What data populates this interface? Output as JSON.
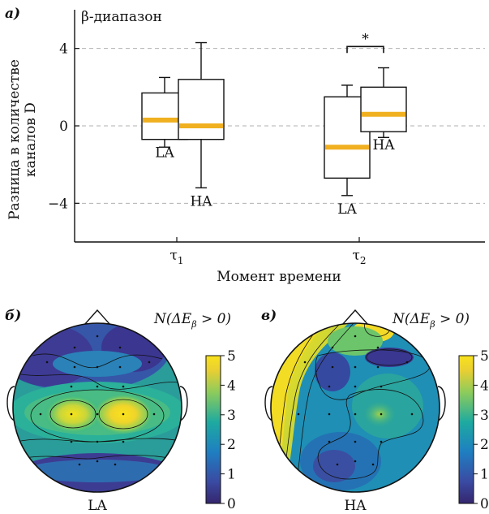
{
  "figure": {
    "panel_a": {
      "letter": "а)",
      "title": "β-диапазон",
      "ylabel_line1": "Разница в количестве",
      "ylabel_line2": "каналов D",
      "xlabel": "Момент времени",
      "xtick_labels": [
        {
          "base": "τ",
          "sub": "1"
        },
        {
          "base": "τ",
          "sub": "2"
        }
      ],
      "ytick_labels": [
        "4",
        "0",
        "−4"
      ],
      "significance_mark": "*"
    },
    "panel_b": {
      "letter": "б)",
      "colorbar_title": "N(ΔE",
      "colorbar_title_sub": "β",
      "colorbar_title_tail": " > 0)",
      "colorbar_ticks": [
        "5",
        "4",
        "3",
        "2",
        "1",
        "0"
      ],
      "caption": "LA"
    },
    "panel_c": {
      "letter": "в)",
      "colorbar_title": "N(ΔE",
      "colorbar_title_sub": "β",
      "colorbar_title_tail": " > 0)",
      "colorbar_ticks": [
        "5",
        "4",
        "3",
        "2",
        "1",
        "0"
      ],
      "caption": "HA"
    },
    "colors": {
      "median": "#f0b020",
      "grid": "#b0b0b0",
      "viridis_low": "#3b2e8a",
      "viridis_mid": "#1fa89a",
      "viridis_high": "#f9e21c"
    }
  },
  "chart_data": {
    "type": "box",
    "title": "β-диапазон",
    "ylabel": "Разница в количестве каналов D",
    "xlabel": "Момент времени",
    "ylim": [
      -6,
      6
    ],
    "yticks": [
      4,
      0,
      -4
    ],
    "grid": "horizontal dashed",
    "categories": [
      "τ1",
      "τ2"
    ],
    "series": [
      {
        "name": "LA",
        "boxes": [
          {
            "category": "τ1",
            "whisker_low": -1.1,
            "q1": -0.7,
            "median": 0.3,
            "q3": 1.7,
            "whisker_high": 2.5
          },
          {
            "category": "τ2",
            "whisker_low": -3.6,
            "q1": -2.7,
            "median": -1.1,
            "q3": 1.5,
            "whisker_high": 2.1
          }
        ]
      },
      {
        "name": "HA",
        "boxes": [
          {
            "category": "τ1",
            "whisker_low": -3.2,
            "q1": -0.7,
            "median": 0.0,
            "q3": 2.4,
            "whisker_high": 4.3
          },
          {
            "category": "τ2",
            "whisker_low": -0.6,
            "q1": -0.3,
            "median": 0.6,
            "q3": 2.0,
            "whisker_high": 3.0
          }
        ]
      }
    ],
    "annotations": [
      {
        "text": "*",
        "between": [
          "LA τ2",
          "HA τ2"
        ]
      }
    ],
    "colorbar_range": [
      0,
      5
    ]
  }
}
